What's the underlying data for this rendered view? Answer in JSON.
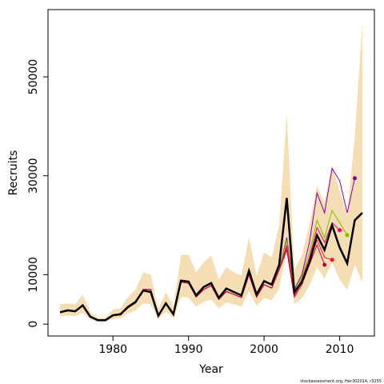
{
  "chart_data": {
    "type": "line",
    "x": [
      1973,
      1974,
      1975,
      1976,
      1977,
      1978,
      1979,
      1980,
      1981,
      1982,
      1983,
      1984,
      1985,
      1986,
      1987,
      1988,
      1989,
      1990,
      1991,
      1992,
      1993,
      1994,
      1995,
      1996,
      1997,
      1998,
      1999,
      2000,
      2001,
      2002,
      2003,
      2004,
      2005,
      2006,
      2007,
      2008,
      2009,
      2010,
      2011,
      2012,
      2013
    ],
    "xlim": [
      1971.4,
      2014.6
    ],
    "xticks": [
      1980,
      1990,
      2000,
      2010
    ],
    "ylim": [
      -2400,
      63600
    ],
    "yticks": [
      0,
      10000,
      30000,
      50000
    ],
    "xlabel": "Year",
    "ylabel": "Recruits",
    "footnote": "stockassessment.org, Her302014, r3255",
    "band": {
      "color": "#f5deb3",
      "upper": [
        4000,
        4200,
        4000,
        6000,
        2500,
        1300,
        1300,
        3000,
        3200,
        5500,
        7000,
        10500,
        10000,
        3000,
        6500,
        3500,
        14000,
        14000,
        10500,
        12500,
        13800,
        9000,
        11500,
        10500,
        9800,
        17500,
        9800,
        14500,
        13500,
        20000,
        42500,
        11000,
        14000,
        20000,
        28000,
        24500,
        32000,
        27000,
        22000,
        38000,
        61000
      ],
      "lower": [
        1500,
        1700,
        1600,
        2300,
        900,
        500,
        500,
        1100,
        1200,
        2200,
        2800,
        4200,
        4000,
        1000,
        2600,
        1200,
        5500,
        5300,
        3500,
        4500,
        5000,
        3200,
        4400,
        4000,
        3500,
        6600,
        3700,
        5300,
        4800,
        7200,
        15000,
        4000,
        5200,
        7800,
        11500,
        9200,
        12500,
        9000,
        6900,
        12000,
        8500
      ]
    },
    "series": [
      {
        "color": "#8000a0",
        "width": 1,
        "end_marker": true,
        "values": [
          2300,
          2700,
          2500,
          3700,
          1500,
          800,
          800,
          1700,
          1900,
          3300,
          4300,
          7000,
          7000,
          1700,
          4100,
          1900,
          8500,
          8300,
          5500,
          7000,
          7800,
          5000,
          6600,
          6000,
          5400,
          10000,
          5500,
          8000,
          7300,
          11000,
          17500,
          7000,
          10000,
          16500,
          26500,
          22500,
          31500,
          29000,
          22500,
          29500,
          null
        ]
      },
      {
        "color": "#80c000",
        "width": 1,
        "end_marker": true,
        "values": [
          2300,
          2700,
          2500,
          3700,
          1500,
          800,
          800,
          1700,
          1900,
          3300,
          4300,
          7000,
          7000,
          1700,
          4100,
          1900,
          8500,
          8300,
          5500,
          7000,
          7800,
          5000,
          6600,
          6000,
          5400,
          10000,
          5500,
          8000,
          7300,
          11000,
          17000,
          6500,
          9500,
          14500,
          21000,
          17500,
          23000,
          20500,
          18000,
          null,
          null
        ]
      },
      {
        "color": "#f0006e",
        "width": 1,
        "end_marker": true,
        "values": [
          2300,
          2700,
          2500,
          3700,
          1500,
          800,
          800,
          1700,
          1900,
          3300,
          4300,
          7000,
          7000,
          1700,
          4100,
          1900,
          8500,
          8300,
          5500,
          7000,
          7800,
          5000,
          6600,
          6000,
          5400,
          10000,
          5500,
          8000,
          7300,
          11000,
          16000,
          6000,
          9000,
          13500,
          19500,
          16500,
          20500,
          19000,
          null,
          null,
          null
        ]
      },
      {
        "color": "#ff1030",
        "width": 1,
        "end_marker": true,
        "values": [
          2300,
          2700,
          2500,
          3700,
          1500,
          800,
          800,
          1700,
          1900,
          3300,
          4300,
          7000,
          7000,
          1700,
          4100,
          1900,
          8500,
          8300,
          5500,
          7000,
          7800,
          5000,
          6600,
          6000,
          5400,
          10000,
          5500,
          8000,
          7300,
          11000,
          15500,
          5800,
          8500,
          12500,
          17000,
          13500,
          13000,
          null,
          null,
          null,
          null
        ]
      },
      {
        "color": "#c00040",
        "width": 1,
        "end_marker": true,
        "values": [
          2300,
          2700,
          2500,
          3700,
          1500,
          800,
          800,
          1700,
          1900,
          3300,
          4300,
          7000,
          7000,
          1700,
          4100,
          1900,
          8500,
          8300,
          5500,
          7000,
          7800,
          5000,
          6600,
          6000,
          5400,
          10000,
          5500,
          8000,
          7300,
          11000,
          15000,
          5500,
          8000,
          12000,
          16000,
          12000,
          null,
          null,
          null,
          null,
          null
        ]
      },
      {
        "color": "#000000",
        "width": 2.5,
        "end_marker": false,
        "values": [
          2400,
          2800,
          2600,
          3800,
          1500,
          800,
          800,
          1800,
          2000,
          3500,
          4500,
          6800,
          6500,
          1700,
          4200,
          2000,
          8800,
          8600,
          5800,
          7500,
          8300,
          5300,
          7200,
          6500,
          5800,
          10800,
          6000,
          8700,
          8000,
          12000,
          25500,
          6500,
          8500,
          12500,
          18000,
          15000,
          20000,
          15500,
          12300,
          21000,
          22500
        ]
      }
    ]
  }
}
